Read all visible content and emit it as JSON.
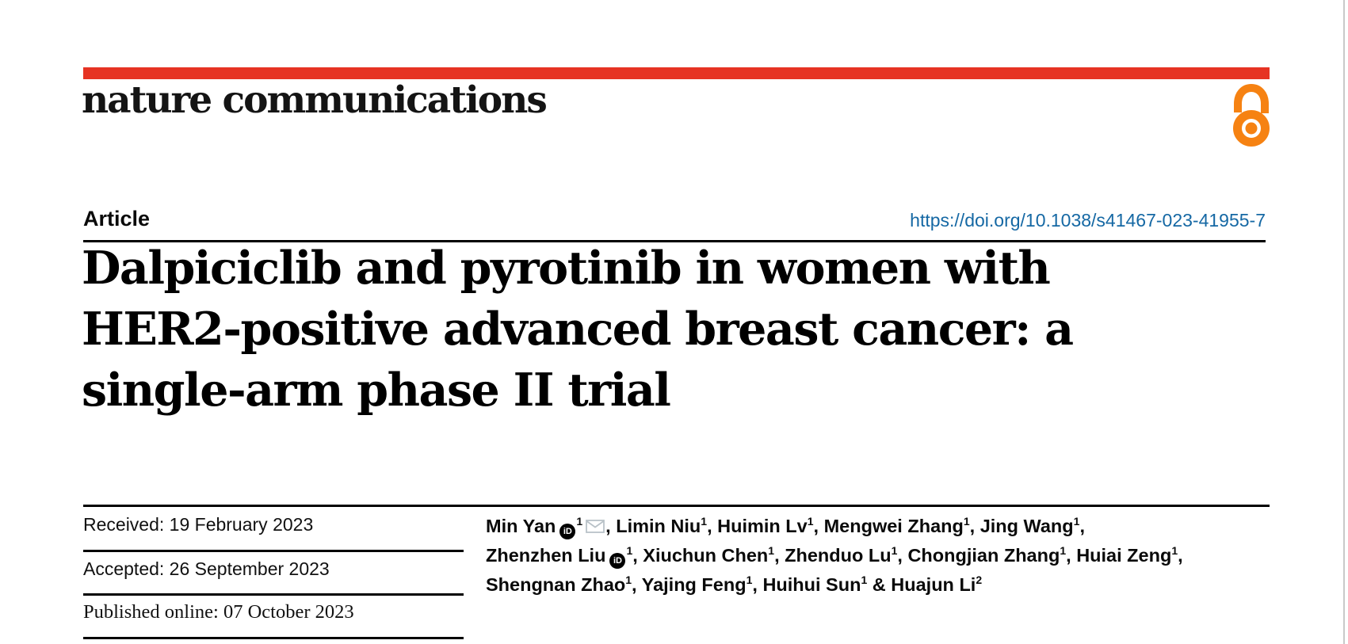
{
  "brand": {
    "logo_text": "nature communications",
    "accent_red": "#e63323",
    "open_access_orange": "#f68212"
  },
  "header": {
    "article_label": "Article",
    "doi": "https://doi.org/10.1038/s41467-023-41955-7",
    "doi_color": "#1568a4"
  },
  "title": {
    "line1": "Dalpiciclib and pyrotinib in women with",
    "line2": "HER2-positive advanced breast cancer: a",
    "line3": "single-arm phase II trial"
  },
  "dates": {
    "received": "Received: 19 February 2023",
    "accepted": "Accepted: 26 September 2023",
    "published": "Published online: 07 October 2023"
  },
  "authors": {
    "orcid_icon_label": "iD",
    "email_icon_color": "#b9c2c8",
    "lines": [
      [
        {
          "name": "Min Yan",
          "sup": "1",
          "orcid": true,
          "email": true,
          "sep": ", "
        },
        {
          "name": "Limin Niu",
          "sup": "1",
          "sep": ", "
        },
        {
          "name": "Huimin Lv",
          "sup": "1",
          "sep": ", "
        },
        {
          "name": "Mengwei Zhang",
          "sup": "1",
          "sep": ", "
        },
        {
          "name": "Jing Wang",
          "sup": "1",
          "sep": ","
        }
      ],
      [
        {
          "name": "Zhenzhen Liu",
          "sup": "1",
          "orcid": true,
          "sep": ", "
        },
        {
          "name": "Xiuchun Chen",
          "sup": "1",
          "sep": ", "
        },
        {
          "name": "Zhenduo Lu",
          "sup": "1",
          "sep": ", "
        },
        {
          "name": "Chongjian Zhang",
          "sup": "1",
          "sep": ", "
        },
        {
          "name": "Huiai Zeng",
          "sup": "1",
          "sep": ","
        }
      ],
      [
        {
          "name": "Shengnan Zhao",
          "sup": "1",
          "sep": ", "
        },
        {
          "name": "Yajing Feng",
          "sup": "1",
          "sep": ", "
        },
        {
          "name": "Huihui Sun",
          "sup": "1",
          "sep": " & "
        },
        {
          "name": "Huajun Li",
          "sup": "2",
          "sep": ""
        }
      ]
    ]
  }
}
